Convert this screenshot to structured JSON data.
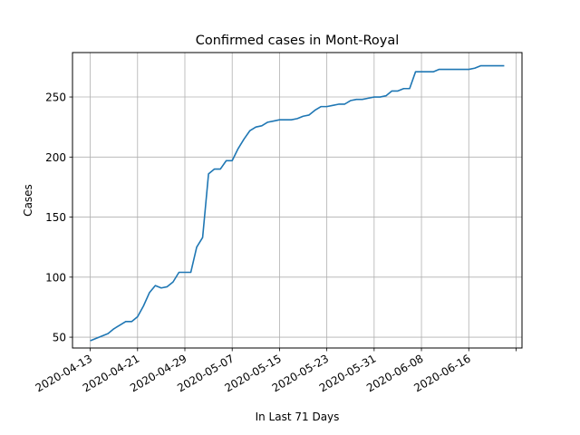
{
  "chart_data": {
    "type": "line",
    "title": "Confirmed cases in Mont-Royal",
    "xlabel": "In Last 71 Days",
    "ylabel": "Cases",
    "x_start": "2020-04-13",
    "xlim": [
      "2020-04-10",
      "2020-06-25"
    ],
    "ylim": [
      41,
      287
    ],
    "grid": true,
    "line_color": "#1f77b4",
    "x_ticks": [
      {
        "date": "2020-04-13",
        "label": "2020-04-13"
      },
      {
        "date": "2020-04-21",
        "label": "2020-04-21"
      },
      {
        "date": "2020-04-29",
        "label": "2020-04-29"
      },
      {
        "date": "2020-05-07",
        "label": "2020-05-07"
      },
      {
        "date": "2020-05-15",
        "label": "2020-05-15"
      },
      {
        "date": "2020-05-23",
        "label": "2020-05-23"
      },
      {
        "date": "2020-05-31",
        "label": "2020-05-31"
      },
      {
        "date": "2020-06-08",
        "label": "2020-06-08"
      },
      {
        "date": "2020-06-16",
        "label": "2020-06-16"
      },
      {
        "date": "2020-06-24",
        "label": ""
      }
    ],
    "y_ticks": [
      50,
      100,
      150,
      200,
      250
    ],
    "series": [
      {
        "name": "",
        "values": [
          47,
          49,
          51,
          53,
          57,
          60,
          63,
          63,
          67,
          76,
          87,
          93,
          91,
          92,
          96,
          104,
          104,
          104,
          125,
          133,
          186,
          190,
          190,
          197,
          197,
          207,
          215,
          222,
          225,
          226,
          229,
          230,
          231,
          231,
          231,
          232,
          234,
          235,
          239,
          242,
          242,
          243,
          244,
          244,
          247,
          248,
          248,
          249,
          250,
          250,
          251,
          255,
          255,
          257,
          257,
          271,
          271,
          271,
          271,
          273,
          273,
          273,
          273,
          273,
          273,
          274,
          276,
          276,
          276,
          276,
          276
        ]
      }
    ]
  }
}
